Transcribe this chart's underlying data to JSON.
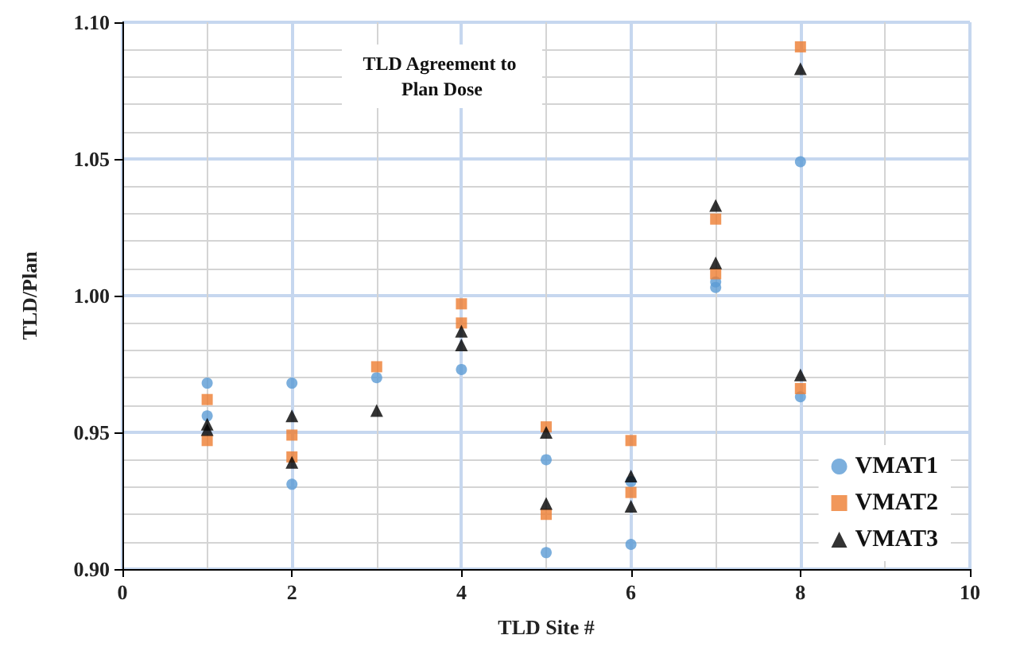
{
  "chart_data": {
    "type": "scatter",
    "title": "TLD Agreement to Plan Dose",
    "xlabel": "TLD Site #",
    "ylabel": "TLD/Plan",
    "xlim": [
      0,
      10
    ],
    "xticks": [
      0,
      2,
      4,
      6,
      8,
      10
    ],
    "ylim": [
      0.9,
      1.1
    ],
    "yticks": [
      {
        "value": 0.9,
        "label": "0.90"
      },
      {
        "value": 0.95,
        "label": "0.95"
      },
      {
        "value": 1.0,
        "label": "1.00"
      },
      {
        "value": 1.05,
        "label": "1.05"
      },
      {
        "value": 1.1,
        "label": "1.10"
      }
    ],
    "grid": true,
    "legend": "bottom right",
    "series": [
      {
        "name": "VMAT1",
        "color": "#5b9bd5",
        "marker": "circle",
        "x": [
          1,
          1,
          2,
          2,
          3,
          4,
          5,
          5,
          6,
          6,
          7,
          7,
          8,
          8
        ],
        "values": [
          0.968,
          0.956,
          0.968,
          0.931,
          0.97,
          0.973,
          0.94,
          0.906,
          0.932,
          0.909,
          1.003,
          1.005,
          1.049,
          0.963
        ]
      },
      {
        "name": "VMAT2",
        "color": "#ed7d31",
        "marker": "square",
        "x": [
          1,
          1,
          2,
          2,
          3,
          4,
          4,
          5,
          5,
          6,
          6,
          7,
          7,
          8,
          8
        ],
        "values": [
          0.962,
          0.947,
          0.949,
          0.941,
          0.974,
          0.997,
          0.99,
          0.952,
          0.92,
          0.947,
          0.928,
          1.028,
          1.008,
          1.091,
          0.966
        ]
      },
      {
        "name": "VMAT3",
        "color": "#000000",
        "marker": "triangle",
        "x": [
          1,
          1,
          2,
          2,
          3,
          4,
          4,
          5,
          5,
          6,
          6,
          7,
          7,
          8,
          8
        ],
        "values": [
          0.953,
          0.951,
          0.956,
          0.939,
          0.958,
          0.987,
          0.982,
          0.95,
          0.924,
          0.934,
          0.923,
          1.033,
          1.012,
          1.083,
          0.971
        ]
      }
    ]
  }
}
